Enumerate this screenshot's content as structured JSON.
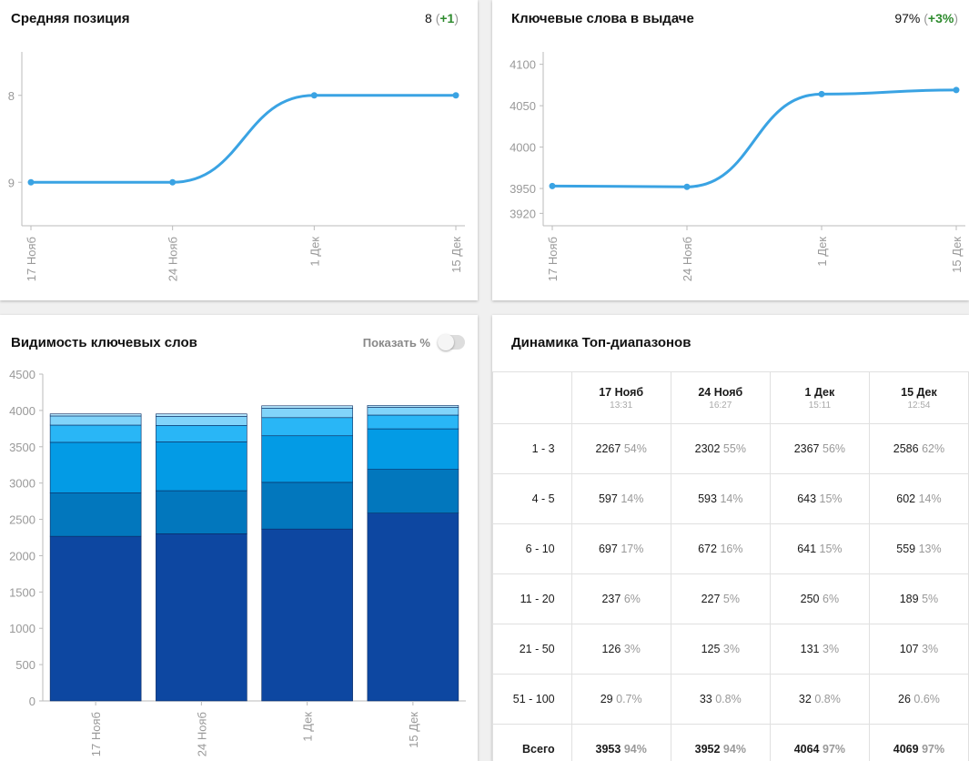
{
  "avg_position": {
    "title": "Средняя позиция",
    "value": "8",
    "delta": "+1",
    "y_ticks": [
      "8",
      "9"
    ]
  },
  "keywords_in_results": {
    "title": "Ключевые слова в выдаче",
    "value": "97%",
    "delta": "+3%",
    "y_ticks": [
      "4100",
      "4050",
      "4000",
      "3950",
      "3920"
    ]
  },
  "visibility": {
    "title": "Видимость ключевых слов",
    "toggle_label": "Показать %",
    "toggle_on": false
  },
  "top_dynamics": {
    "title": "Динамика Топ-диапазонов",
    "columns": [
      {
        "date": "17 Нояб",
        "time": "13:31"
      },
      {
        "date": "24 Нояб",
        "time": "16:27"
      },
      {
        "date": "1 Дек",
        "time": "15:11"
      },
      {
        "date": "15 Дек",
        "time": "12:54"
      }
    ],
    "rows": [
      {
        "label": "1 - 3",
        "cells": [
          [
            "2267",
            "54%"
          ],
          [
            "2302",
            "55%"
          ],
          [
            "2367",
            "56%"
          ],
          [
            "2586",
            "62%"
          ]
        ]
      },
      {
        "label": "4 - 5",
        "cells": [
          [
            "597",
            "14%"
          ],
          [
            "593",
            "14%"
          ],
          [
            "643",
            "15%"
          ],
          [
            "602",
            "14%"
          ]
        ]
      },
      {
        "label": "6 - 10",
        "cells": [
          [
            "697",
            "17%"
          ],
          [
            "672",
            "16%"
          ],
          [
            "641",
            "15%"
          ],
          [
            "559",
            "13%"
          ]
        ]
      },
      {
        "label": "11 - 20",
        "cells": [
          [
            "237",
            "6%"
          ],
          [
            "227",
            "5%"
          ],
          [
            "250",
            "6%"
          ],
          [
            "189",
            "5%"
          ]
        ]
      },
      {
        "label": "21 - 50",
        "cells": [
          [
            "126",
            "3%"
          ],
          [
            "125",
            "3%"
          ],
          [
            "131",
            "3%"
          ],
          [
            "107",
            "3%"
          ]
        ]
      },
      {
        "label": "51 - 100",
        "cells": [
          [
            "29",
            "0.7%"
          ],
          [
            "33",
            "0.8%"
          ],
          [
            "32",
            "0.8%"
          ],
          [
            "26",
            "0.6%"
          ]
        ]
      },
      {
        "label": "Всего",
        "cells": [
          [
            "3953",
            "94%"
          ],
          [
            "3952",
            "94%"
          ],
          [
            "4064",
            "97%"
          ],
          [
            "4069",
            "97%"
          ]
        ],
        "total": true
      }
    ]
  },
  "chart_data": [
    {
      "type": "line",
      "title": "Средняя позиция",
      "categories": [
        "17 Нояб",
        "24 Нояб",
        "1 Дек",
        "15 Дек"
      ],
      "values": [
        9,
        9,
        8,
        8
      ],
      "ylim": [
        7.5,
        9.5
      ],
      "y_inverted": true,
      "y_ticks": [
        8,
        9
      ],
      "color": "#3aa3e3"
    },
    {
      "type": "line",
      "title": "Ключевые слова в выдаче",
      "categories": [
        "17 Нояб",
        "24 Нояб",
        "1 Дек",
        "15 Дек"
      ],
      "values": [
        3953,
        3952,
        4064,
        4069
      ],
      "ylim": [
        3905,
        4115
      ],
      "y_ticks": [
        3920,
        3950,
        4000,
        4050,
        4100
      ],
      "color": "#3aa3e3"
    },
    {
      "type": "bar",
      "stacked": true,
      "title": "Видимость ключевых слов",
      "categories": [
        "17 Нояб",
        "24 Нояб",
        "1 Дек",
        "15 Дек"
      ],
      "ylim": [
        0,
        4500
      ],
      "y_ticks": [
        0,
        500,
        1000,
        1500,
        2000,
        2500,
        3000,
        3500,
        4000,
        4500
      ],
      "series": [
        {
          "values": [
            2267,
            2302,
            2367,
            2586
          ],
          "color": "#0d47a1"
        },
        {
          "values": [
            597,
            593,
            643,
            602
          ],
          "color": "#0277bd"
        },
        {
          "values": [
            697,
            672,
            641,
            559
          ],
          "color": "#039be5"
        },
        {
          "values": [
            237,
            227,
            250,
            189
          ],
          "color": "#29b6f6"
        },
        {
          "values": [
            126,
            125,
            131,
            107
          ],
          "color": "#81d4fa"
        },
        {
          "values": [
            29,
            33,
            32,
            26
          ],
          "color": "#b3e5fc"
        }
      ]
    }
  ]
}
